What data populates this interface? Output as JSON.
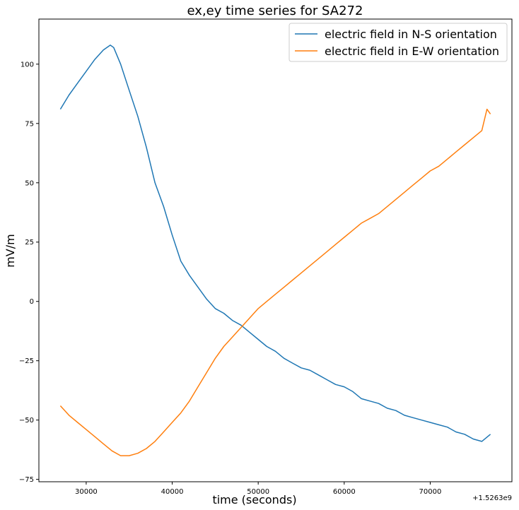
{
  "chart_data": {
    "type": "line",
    "title": "ex,ey time series for SA272",
    "xlabel": "time (seconds)",
    "ylabel": "mV/m",
    "x_offset_label": "+1.5263e9",
    "xlim": [
      24500,
      79500
    ],
    "ylim": [
      -76,
      119
    ],
    "xticks": [
      30000,
      40000,
      50000,
      60000,
      70000
    ],
    "xtick_labels": [
      "30000",
      "40000",
      "50000",
      "60000",
      "70000"
    ],
    "yticks": [
      -75,
      -50,
      -25,
      0,
      25,
      50,
      75,
      100
    ],
    "ytick_labels": [
      "−75",
      "−50",
      "−25",
      "0",
      "25",
      "50",
      "75",
      "100"
    ],
    "grid": false,
    "legend_position": "top-right",
    "series": [
      {
        "name": "electric field in N-S orientation",
        "color": "#1f77b4",
        "x": [
          27000,
          28000,
          29000,
          30000,
          31000,
          32000,
          32800,
          33200,
          34000,
          35000,
          36000,
          37000,
          38000,
          39000,
          40000,
          41000,
          42000,
          43000,
          44000,
          45000,
          46000,
          47000,
          48000,
          49000,
          50000,
          51000,
          52000,
          53000,
          54000,
          55000,
          56000,
          57000,
          58000,
          59000,
          60000,
          61000,
          62000,
          63000,
          64000,
          65000,
          66000,
          67000,
          68000,
          69000,
          70000,
          71000,
          72000,
          73000,
          74000,
          75000,
          76000,
          77000
        ],
        "y": [
          81,
          87,
          92,
          97,
          102,
          106,
          108,
          107,
          100,
          89,
          78,
          65,
          50,
          40,
          28,
          17,
          11,
          6,
          1,
          -3,
          -5,
          -8,
          -10,
          -13,
          -16,
          -19,
          -21,
          -24,
          -26,
          -28,
          -29,
          -31,
          -33,
          -35,
          -36,
          -38,
          -41,
          -42,
          -43,
          -45,
          -46,
          -48,
          -49,
          -50,
          -51,
          -52,
          -53,
          -55,
          -56,
          -58,
          -59,
          -56
        ]
      },
      {
        "name": "electric field in E-W orientation",
        "color": "#ff7f0e",
        "x": [
          27000,
          28000,
          29000,
          30000,
          31000,
          32000,
          33000,
          34000,
          35000,
          36000,
          37000,
          38000,
          39000,
          40000,
          41000,
          42000,
          43000,
          44000,
          45000,
          46000,
          47000,
          48000,
          49000,
          50000,
          51000,
          52000,
          53000,
          54000,
          55000,
          56000,
          57000,
          58000,
          59000,
          60000,
          61000,
          62000,
          63000,
          64000,
          65000,
          66000,
          67000,
          68000,
          69000,
          70000,
          71000,
          72000,
          73000,
          74000,
          75000,
          76000,
          76600,
          77000
        ],
        "y": [
          -44,
          -48,
          -51,
          -54,
          -57,
          -60,
          -63,
          -65,
          -65,
          -64,
          -62,
          -59,
          -55,
          -51,
          -47,
          -42,
          -36,
          -30,
          -24,
          -19,
          -15,
          -11,
          -7,
          -3,
          0,
          3,
          6,
          9,
          12,
          15,
          18,
          21,
          24,
          27,
          30,
          33,
          35,
          37,
          40,
          43,
          46,
          49,
          52,
          55,
          57,
          60,
          63,
          66,
          69,
          72,
          81,
          79
        ]
      }
    ]
  }
}
